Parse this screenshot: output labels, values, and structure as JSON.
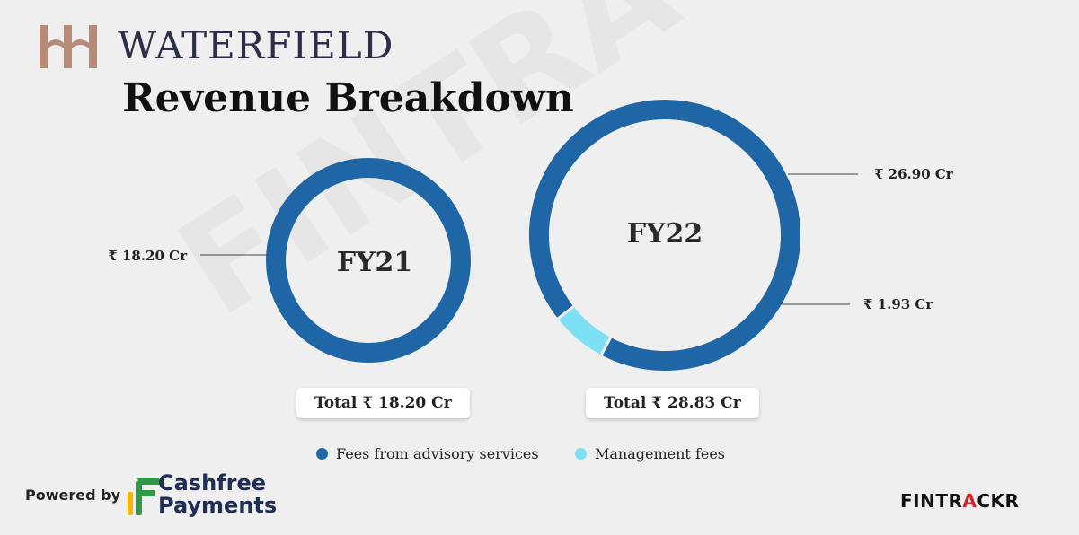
{
  "brand": {
    "name": "WATERFIELD",
    "logo_color": "#b88a78"
  },
  "watermark": "FINTRACKR",
  "chart_data": {
    "type": "pie",
    "title": "Revenue Breakdown",
    "donut": true,
    "legend": {
      "placement": "bottom",
      "items": [
        {
          "name": "Fees from advisory services",
          "color": "#1f66a6"
        },
        {
          "name": "Management fees",
          "color": "#7ee0f5"
        }
      ]
    },
    "charts": [
      {
        "label": "FY21",
        "total_label": "Total ₹ 18.20 Cr",
        "slices": [
          {
            "name": "Fees from advisory services",
            "value": 18.2,
            "label": "₹ 18.20 Cr"
          }
        ]
      },
      {
        "label": "FY22",
        "total_label": "Total ₹ 28.83 Cr",
        "slices": [
          {
            "name": "Fees from advisory services",
            "value": 26.9,
            "label": "₹ 26.90 Cr"
          },
          {
            "name": "Management fees",
            "value": 1.93,
            "label": "₹ 1.93 Cr"
          }
        ]
      }
    ]
  },
  "footer": {
    "powered_by": "Powered by",
    "sponsor_line1": "Cashfree",
    "sponsor_line2": "Payments",
    "fintrackr_part1": "FINTR",
    "fintrackr_part2": "A",
    "fintrackr_part3": "CKR",
    "fintrackr_dark": "#111111",
    "fintrackr_accent": "#d32027"
  }
}
